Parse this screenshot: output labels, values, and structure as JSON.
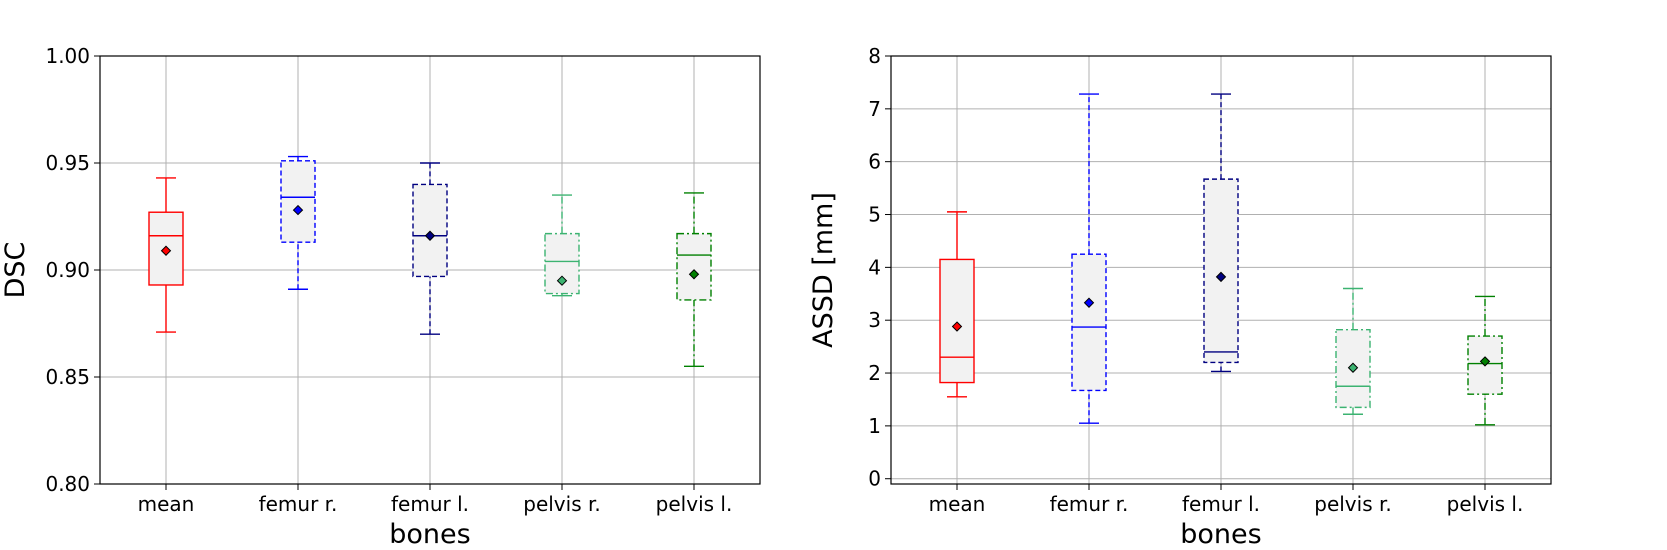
{
  "chart_data": [
    {
      "type": "box",
      "title": "",
      "xlabel": "bones",
      "ylabel": "DSC",
      "ylim": [
        0.8,
        1.0
      ],
      "yticks": [
        0.8,
        0.85,
        0.9,
        0.95,
        1.0
      ],
      "ytick_labels": [
        "0.80",
        "0.85",
        "0.90",
        "0.95",
        "1.00"
      ],
      "grid": true,
      "categories": [
        "mean",
        "femur r.",
        "femur l.",
        "pelvis r.",
        "pelvis l."
      ],
      "boxes": [
        {
          "name": "mean",
          "whislo": 0.871,
          "q1": 0.893,
          "med": 0.916,
          "q3": 0.927,
          "whishi": 0.943,
          "mean": 0.909,
          "color": "#ff0000",
          "linestyle": "solid"
        },
        {
          "name": "femur r.",
          "whislo": 0.891,
          "q1": 0.913,
          "med": 0.934,
          "q3": 0.951,
          "whishi": 0.953,
          "mean": 0.928,
          "color": "#0000ff",
          "linestyle": "dashed"
        },
        {
          "name": "femur l.",
          "whislo": 0.87,
          "q1": 0.897,
          "med": 0.916,
          "q3": 0.94,
          "whishi": 0.95,
          "mean": 0.916,
          "color": "#000080",
          "linestyle": "dashed"
        },
        {
          "name": "pelvis r.",
          "whislo": 0.888,
          "q1": 0.889,
          "med": 0.904,
          "q3": 0.917,
          "whishi": 0.935,
          "mean": 0.895,
          "color": "#3cb371",
          "linestyle": "dashdot"
        },
        {
          "name": "pelvis l.",
          "whislo": 0.855,
          "q1": 0.886,
          "med": 0.907,
          "q3": 0.917,
          "whishi": 0.936,
          "mean": 0.898,
          "color": "#008000",
          "linestyle": "dashdot"
        }
      ]
    },
    {
      "type": "box",
      "title": "",
      "xlabel": "bones",
      "ylabel": "ASSD [mm]",
      "ylim": [
        -0.1,
        8.0
      ],
      "yticks": [
        0,
        1,
        2,
        3,
        4,
        5,
        6,
        7,
        8
      ],
      "ytick_labels": [
        "0",
        "1",
        "2",
        "3",
        "4",
        "5",
        "6",
        "7",
        "8"
      ],
      "grid": true,
      "categories": [
        "mean",
        "femur r.",
        "femur l.",
        "pelvis r.",
        "pelvis l."
      ],
      "boxes": [
        {
          "name": "mean",
          "whislo": 1.55,
          "q1": 1.82,
          "med": 2.3,
          "q3": 4.15,
          "whishi": 5.05,
          "mean": 2.88,
          "color": "#ff0000",
          "linestyle": "solid"
        },
        {
          "name": "femur r.",
          "whislo": 1.05,
          "q1": 1.67,
          "med": 2.87,
          "q3": 4.25,
          "whishi": 7.28,
          "mean": 3.33,
          "color": "#0000ff",
          "linestyle": "dashed"
        },
        {
          "name": "femur l.",
          "whislo": 2.03,
          "q1": 2.2,
          "med": 2.4,
          "q3": 5.67,
          "whishi": 7.28,
          "mean": 3.82,
          "color": "#000080",
          "linestyle": "dashed"
        },
        {
          "name": "pelvis r.",
          "whislo": 1.22,
          "q1": 1.35,
          "med": 1.75,
          "q3": 2.82,
          "whishi": 3.6,
          "mean": 2.1,
          "color": "#3cb371",
          "linestyle": "dashdot"
        },
        {
          "name": "pelvis l.",
          "whislo": 1.02,
          "q1": 1.6,
          "med": 2.18,
          "q3": 2.7,
          "whishi": 3.45,
          "mean": 2.22,
          "color": "#008000",
          "linestyle": "dashdot"
        }
      ]
    }
  ]
}
